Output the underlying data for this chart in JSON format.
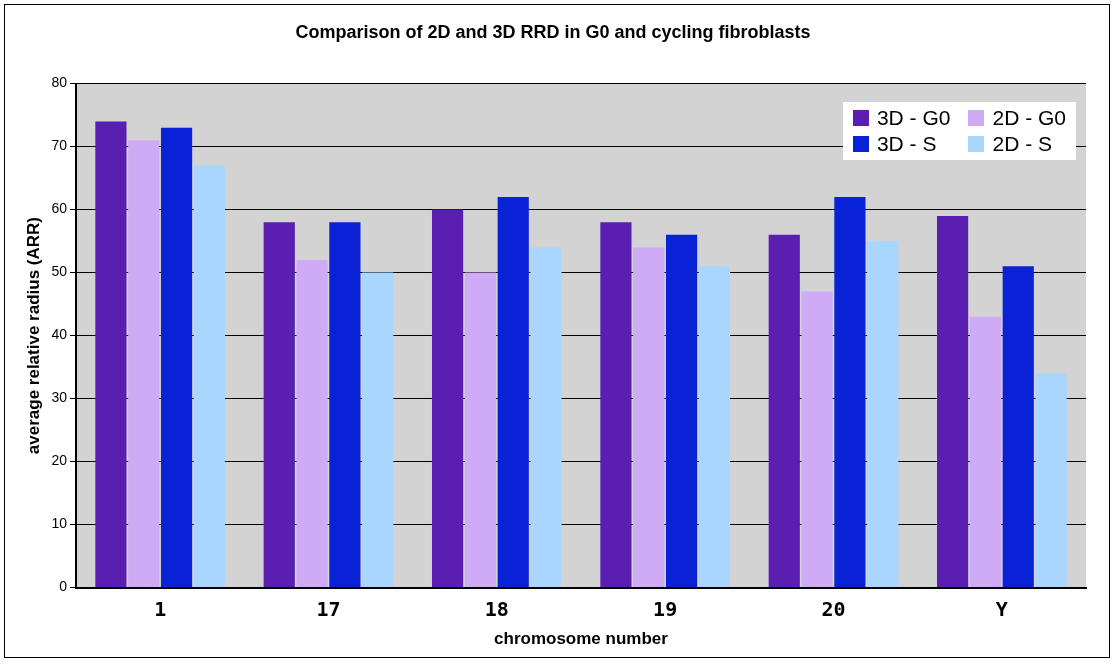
{
  "chart_data": {
    "type": "bar",
    "title": "Comparison of 2D and 3D RRD in G0 and cycling fibroblasts",
    "xlabel": "chromosome number",
    "ylabel": "average relative radius (ARR)",
    "categories": [
      "1",
      "17",
      "18",
      "19",
      "20",
      "Y"
    ],
    "series": [
      {
        "name": "3D - G0",
        "color": "#5a1fb0",
        "values": [
          74,
          58,
          60,
          58,
          56,
          59
        ]
      },
      {
        "name": "2D - G0",
        "color": "#cfaaf5",
        "values": [
          71,
          52,
          50,
          54,
          47,
          43
        ]
      },
      {
        "name": "3D - S",
        "color": "#0a22d6",
        "values": [
          73,
          58,
          62,
          56,
          62,
          51
        ]
      },
      {
        "name": "2D - S",
        "color": "#a8d6ff",
        "values": [
          67,
          50,
          54,
          51,
          55,
          34
        ]
      }
    ],
    "ylim": [
      0,
      80
    ],
    "yticks": [
      0,
      10,
      20,
      30,
      40,
      50,
      60,
      70,
      80
    ],
    "grid": "y",
    "legend": "top right"
  }
}
